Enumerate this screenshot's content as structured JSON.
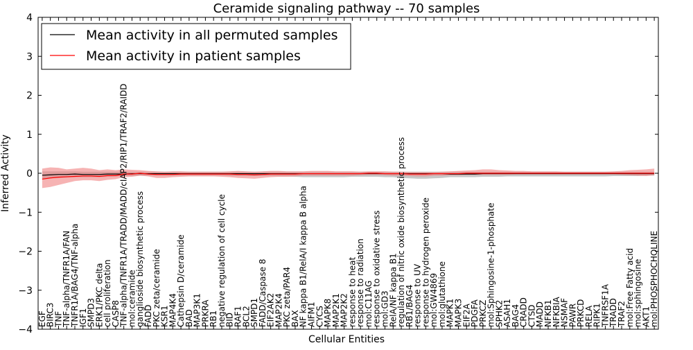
{
  "chart_data": {
    "type": "line",
    "title": "Ceramide signaling pathway -- 70 samples",
    "xlabel": "Cellular Entities",
    "ylabel": "Inferred Activity",
    "ylim": [
      -4,
      4
    ],
    "yticks": [
      -4,
      -3,
      -2,
      -1,
      0,
      1,
      2,
      3,
      4
    ],
    "ytick_labels": [
      "−4",
      "−3",
      "−2",
      "−1",
      "0",
      "1",
      "2",
      "3",
      "4"
    ],
    "legend_position": "top-left",
    "categories": [
      "EGF",
      "BIRC3",
      "TNF",
      "TNF-alpha/TNFR1A/FAN",
      "TNFR1A/BAG4/TNF-alpha",
      "IGF1",
      "SMPD3",
      "ERK1/PKC delta",
      "cell proliferation",
      "CASP8",
      "TNF-alpha/TNFR1A/TRADD/MADD/cIAP2/RIP1/TRAF2/RAIDD",
      "mol:ceramide",
      "ganglioside biosynthetic process",
      "FADD",
      "PKC zeta/ceramide",
      "KSR1",
      "MAP4K4",
      "Cathepsin D/ceramide",
      "BAD",
      "MAP3K1",
      "PRKRA",
      "RB1",
      "negative regulation of cell cycle",
      "BID",
      "RAF1",
      "BCL2",
      "SMPD1",
      "FADD/Caspase 8",
      "EIF2AK2",
      "MAP2K4",
      "PKC zeta/PAR4",
      "BAX",
      "NF kappa B1/RelA/I kappa B alpha",
      "AIFM1",
      "CYCS",
      "MAPK8",
      "MAP2K1",
      "MAP2K2",
      "response to heat",
      "response to radiation",
      "mol:C11AG",
      "response to oxidative stress",
      "mol:GD3",
      "RelA/NF kappa B1",
      "regulation of nitric oxide biosynthetic process",
      "RB1/BAG4",
      "response to UV",
      "response to hydrogen peroxide",
      "mol:GW4869",
      "mol:glutathione",
      "MAPK1",
      "MAPK3",
      "EIF2A",
      "PDGFA",
      "PRKCZ",
      "mol:Sphingosine-1-phosphate",
      "SPHK2",
      "ASAH1",
      "BAG4",
      "CRADD",
      "CTSD",
      "MADD",
      "NFKB1",
      "NFKBIA",
      "NSMAF",
      "PAWR",
      "PRKCD",
      "RELA",
      "RIPK1",
      "TNFRSF1A",
      "TRADD",
      "TRAF2",
      "mol:Free Fatty acid",
      "mol:sphingosine",
      "AKT1",
      "mol:PHOSPHOCHOLINE"
    ],
    "series": [
      {
        "name": "Mean activity in all permuted samples",
        "color": "#000000",
        "band_color": "#999999",
        "values": [
          -0.05,
          -0.04,
          -0.03,
          -0.03,
          -0.02,
          -0.03,
          -0.03,
          -0.03,
          -0.02,
          -0.02,
          -0.02,
          -0.01,
          -0.01,
          -0.01,
          -0.01,
          -0.01,
          -0.01,
          -0.01,
          -0.01,
          -0.01,
          -0.01,
          -0.01,
          -0.01,
          -0.01,
          -0.01,
          -0.01,
          -0.01,
          -0.01,
          -0.01,
          -0.01,
          -0.01,
          -0.01,
          -0.01,
          -0.01,
          -0.01,
          -0.01,
          -0.01,
          -0.01,
          -0.01,
          -0.01,
          -0.01,
          -0.01,
          -0.01,
          -0.01,
          -0.01,
          -0.01,
          -0.01,
          -0.01,
          -0.01,
          -0.01,
          -0.02,
          -0.02,
          -0.02,
          -0.02,
          -0.01,
          -0.01,
          -0.01,
          -0.01,
          -0.01,
          -0.01,
          -0.01,
          -0.01,
          -0.01,
          -0.01,
          -0.01,
          -0.01,
          -0.01,
          -0.01,
          -0.01,
          -0.01,
          -0.01,
          -0.01,
          -0.01,
          -0.01,
          -0.01,
          -0.01
        ],
        "lower": [
          -0.15,
          -0.13,
          -0.12,
          -0.11,
          -0.1,
          -0.1,
          -0.1,
          -0.1,
          -0.09,
          -0.08,
          -0.07,
          -0.07,
          -0.06,
          -0.06,
          -0.06,
          -0.06,
          -0.06,
          -0.06,
          -0.06,
          -0.06,
          -0.06,
          -0.06,
          -0.06,
          -0.07,
          -0.07,
          -0.07,
          -0.07,
          -0.07,
          -0.07,
          -0.08,
          -0.08,
          -0.09,
          -0.1,
          -0.1,
          -0.1,
          -0.1,
          -0.1,
          -0.1,
          -0.09,
          -0.09,
          -0.09,
          -0.09,
          -0.1,
          -0.1,
          -0.12,
          -0.13,
          -0.14,
          -0.14,
          -0.13,
          -0.12,
          -0.1,
          -0.1,
          -0.1,
          -0.1,
          -0.09,
          -0.09,
          -0.09,
          -0.08,
          -0.08,
          -0.08,
          -0.08,
          -0.08,
          -0.08,
          -0.08,
          -0.08,
          -0.08,
          -0.08,
          -0.08,
          -0.08,
          -0.08,
          -0.07,
          -0.07,
          -0.07,
          -0.07,
          -0.06,
          -0.06
        ],
        "upper": [
          0.05,
          0.05,
          0.05,
          0.05,
          0.05,
          0.04,
          0.04,
          0.04,
          0.04,
          0.04,
          0.04,
          0.04,
          0.04,
          0.04,
          0.04,
          0.04,
          0.04,
          0.04,
          0.04,
          0.04,
          0.04,
          0.04,
          0.04,
          0.04,
          0.04,
          0.04,
          0.04,
          0.04,
          0.04,
          0.04,
          0.04,
          0.04,
          0.04,
          0.04,
          0.04,
          0.04,
          0.04,
          0.04,
          0.04,
          0.04,
          0.04,
          0.04,
          0.04,
          0.04,
          0.04,
          0.04,
          0.04,
          0.04,
          0.04,
          0.04,
          0.04,
          0.04,
          0.04,
          0.04,
          0.04,
          0.04,
          0.04,
          0.04,
          0.04,
          0.04,
          0.04,
          0.04,
          0.04,
          0.04,
          0.04,
          0.04,
          0.04,
          0.04,
          0.04,
          0.04,
          0.04,
          0.04,
          0.04,
          0.04,
          0.04,
          0.04
        ]
      },
      {
        "name": "Mean activity in patient samples",
        "color": "#ff0000",
        "band_color": "#f08080",
        "values": [
          -0.15,
          -0.12,
          -0.1,
          -0.09,
          -0.08,
          -0.07,
          -0.07,
          -0.08,
          -0.06,
          -0.06,
          -0.02,
          -0.02,
          0.0,
          -0.02,
          -0.03,
          -0.03,
          -0.03,
          -0.02,
          -0.02,
          -0.02,
          -0.02,
          -0.02,
          -0.02,
          -0.02,
          -0.03,
          -0.03,
          -0.04,
          -0.03,
          -0.02,
          -0.02,
          -0.02,
          -0.02,
          -0.01,
          -0.01,
          -0.01,
          -0.01,
          -0.01,
          -0.01,
          -0.01,
          -0.01,
          0.0,
          0.0,
          -0.01,
          -0.01,
          -0.01,
          -0.02,
          -0.02,
          -0.02,
          -0.01,
          -0.01,
          -0.01,
          -0.01,
          0.0,
          0.0,
          0.0,
          0.0,
          0.0,
          0.0,
          0.0,
          0.0,
          0.0,
          0.0,
          0.0,
          0.0,
          0.0,
          0.0,
          0.0,
          0.0,
          0.0,
          0.0,
          0.0,
          0.0,
          0.0,
          0.0,
          0.0,
          0.0
        ],
        "lower": [
          -0.38,
          -0.35,
          -0.3,
          -0.25,
          -0.2,
          -0.18,
          -0.18,
          -0.2,
          -0.17,
          -0.15,
          -0.1,
          -0.09,
          -0.06,
          -0.08,
          -0.12,
          -0.12,
          -0.1,
          -0.09,
          -0.08,
          -0.08,
          -0.08,
          -0.08,
          -0.09,
          -0.1,
          -0.12,
          -0.13,
          -0.14,
          -0.12,
          -0.1,
          -0.09,
          -0.09,
          -0.08,
          -0.06,
          -0.06,
          -0.06,
          -0.06,
          -0.06,
          -0.06,
          -0.06,
          -0.05,
          -0.04,
          -0.04,
          -0.05,
          -0.06,
          -0.06,
          -0.07,
          -0.08,
          -0.08,
          -0.06,
          -0.06,
          -0.05,
          -0.05,
          -0.04,
          -0.04,
          -0.04,
          -0.04,
          -0.04,
          -0.04,
          -0.03,
          -0.03,
          -0.03,
          -0.03,
          -0.03,
          -0.03,
          -0.03,
          -0.03,
          -0.03,
          -0.03,
          -0.03,
          -0.03,
          -0.03,
          -0.04,
          -0.05,
          -0.06,
          -0.07,
          -0.05
        ],
        "upper": [
          0.12,
          0.15,
          0.14,
          0.1,
          0.12,
          0.14,
          0.12,
          0.08,
          0.1,
          0.08,
          0.1,
          0.09,
          0.08,
          0.06,
          0.05,
          0.04,
          0.05,
          0.05,
          0.04,
          0.04,
          0.04,
          0.04,
          0.04,
          0.05,
          0.06,
          0.05,
          0.04,
          0.05,
          0.06,
          0.06,
          0.05,
          0.05,
          0.05,
          0.06,
          0.06,
          0.06,
          0.05,
          0.05,
          0.05,
          0.04,
          0.05,
          0.05,
          0.05,
          0.04,
          0.04,
          0.03,
          0.03,
          0.03,
          0.03,
          0.04,
          0.05,
          0.06,
          0.07,
          0.08,
          0.1,
          0.1,
          0.08,
          0.07,
          0.06,
          0.06,
          0.05,
          0.05,
          0.05,
          0.05,
          0.04,
          0.04,
          0.04,
          0.04,
          0.04,
          0.04,
          0.05,
          0.06,
          0.08,
          0.09,
          0.1,
          0.12
        ]
      }
    ]
  }
}
